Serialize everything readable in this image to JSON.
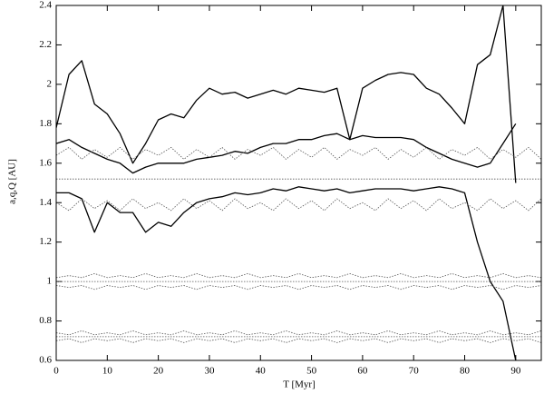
{
  "chart_data": {
    "type": "line",
    "x_label": "T [Myr]",
    "y_label": "a,q,Q [AU]",
    "xlim": [
      0,
      95
    ],
    "xticks": [
      0,
      10,
      20,
      30,
      40,
      50,
      60,
      70,
      80,
      90
    ],
    "ylim": [
      0.6,
      2.4
    ],
    "yticks": [
      0.6,
      0.8,
      1,
      1.2,
      1.4,
      1.6,
      1.8,
      2,
      2.2,
      2.4
    ],
    "x": [
      0,
      2.5,
      5,
      7.5,
      10,
      12.5,
      15,
      17.5,
      20,
      22.5,
      25,
      27.5,
      30,
      32.5,
      35,
      37.5,
      40,
      42.5,
      45,
      47.5,
      50,
      52.5,
      55,
      57.5,
      60,
      62.5,
      65,
      67.5,
      70,
      72.5,
      75,
      77.5,
      80,
      82.5,
      85,
      87.5,
      90,
      92.5,
      95
    ],
    "series": [
      {
        "color": "#000000",
        "style": "solid",
        "values": [
          1.78,
          2.05,
          2.12,
          1.9,
          1.85,
          1.75,
          1.6,
          1.7,
          1.82,
          1.85,
          1.83,
          1.92,
          1.98,
          1.95,
          1.96,
          1.93,
          1.95,
          1.97,
          1.95,
          1.98,
          1.97,
          1.96,
          1.98,
          1.72,
          1.98,
          2.02,
          2.05,
          2.06,
          2.05,
          1.98,
          1.95,
          1.88,
          1.8,
          2.1,
          2.15,
          2.4,
          1.5,
          null,
          null
        ]
      },
      {
        "color": "#000000",
        "style": "solid",
        "values": [
          1.7,
          1.72,
          1.68,
          1.65,
          1.62,
          1.6,
          1.55,
          1.58,
          1.6,
          1.6,
          1.6,
          1.62,
          1.63,
          1.64,
          1.66,
          1.65,
          1.68,
          1.7,
          1.7,
          1.72,
          1.72,
          1.74,
          1.75,
          1.72,
          1.74,
          1.73,
          1.73,
          1.73,
          1.72,
          1.68,
          1.65,
          1.62,
          1.6,
          1.58,
          1.6,
          1.7,
          1.8,
          null,
          null
        ]
      },
      {
        "color": "#000000",
        "style": "solid",
        "values": [
          1.45,
          1.45,
          1.42,
          1.25,
          1.4,
          1.35,
          1.35,
          1.25,
          1.3,
          1.28,
          1.35,
          1.4,
          1.42,
          1.43,
          1.45,
          1.44,
          1.45,
          1.47,
          1.46,
          1.48,
          1.47,
          1.46,
          1.47,
          1.45,
          1.46,
          1.47,
          1.47,
          1.47,
          1.46,
          1.47,
          1.48,
          1.47,
          1.45,
          1.2,
          1.0,
          0.9,
          0.6,
          null,
          null
        ]
      },
      {
        "color": "#555555",
        "style": "dotted",
        "values": [
          1.64,
          1.68,
          1.62,
          1.67,
          1.63,
          1.68,
          1.62,
          1.67,
          1.64,
          1.68,
          1.62,
          1.67,
          1.63,
          1.68,
          1.62,
          1.67,
          1.64,
          1.68,
          1.62,
          1.67,
          1.63,
          1.68,
          1.62,
          1.67,
          1.64,
          1.68,
          1.62,
          1.67,
          1.63,
          1.68,
          1.62,
          1.67,
          1.64,
          1.68,
          1.62,
          1.67,
          1.63,
          1.68,
          1.62
        ]
      },
      {
        "color": "#555555",
        "style": "dotted",
        "values": [
          1.52,
          1.52,
          1.52,
          1.52,
          1.52,
          1.52,
          1.52,
          1.52,
          1.52,
          1.52,
          1.52,
          1.52,
          1.52,
          1.52,
          1.52,
          1.52,
          1.52,
          1.52,
          1.52,
          1.52,
          1.52,
          1.52,
          1.52,
          1.52,
          1.52,
          1.52,
          1.52,
          1.52,
          1.52,
          1.52,
          1.52,
          1.52,
          1.52,
          1.52,
          1.52,
          1.52,
          1.52,
          1.52,
          1.52
        ]
      },
      {
        "color": "#555555",
        "style": "dotted",
        "values": [
          1.4,
          1.36,
          1.42,
          1.37,
          1.41,
          1.36,
          1.42,
          1.37,
          1.4,
          1.36,
          1.42,
          1.37,
          1.41,
          1.36,
          1.42,
          1.37,
          1.4,
          1.36,
          1.42,
          1.37,
          1.41,
          1.36,
          1.42,
          1.37,
          1.4,
          1.36,
          1.42,
          1.37,
          1.41,
          1.36,
          1.42,
          1.37,
          1.4,
          1.36,
          1.42,
          1.37,
          1.41,
          1.36,
          1.42
        ]
      },
      {
        "color": "#555555",
        "style": "dotted",
        "values": [
          1.02,
          1.03,
          1.02,
          1.04,
          1.02,
          1.03,
          1.02,
          1.04,
          1.02,
          1.03,
          1.02,
          1.04,
          1.02,
          1.03,
          1.02,
          1.04,
          1.02,
          1.03,
          1.02,
          1.04,
          1.02,
          1.03,
          1.02,
          1.04,
          1.02,
          1.03,
          1.02,
          1.04,
          1.02,
          1.03,
          1.02,
          1.04,
          1.02,
          1.03,
          1.02,
          1.04,
          1.02,
          1.03,
          1.02
        ]
      },
      {
        "color": "#555555",
        "style": "dotted",
        "values": [
          1,
          1,
          1,
          1,
          1,
          1,
          1,
          1,
          1,
          1,
          1,
          1,
          1,
          1,
          1,
          1,
          1,
          1,
          1,
          1,
          1,
          1,
          1,
          1,
          1,
          1,
          1,
          1,
          1,
          1,
          1,
          1,
          1,
          1,
          1,
          1,
          1,
          1,
          1
        ]
      },
      {
        "color": "#555555",
        "style": "dotted",
        "values": [
          0.98,
          0.97,
          0.98,
          0.96,
          0.98,
          0.97,
          0.98,
          0.96,
          0.98,
          0.97,
          0.98,
          0.96,
          0.98,
          0.97,
          0.98,
          0.96,
          0.98,
          0.97,
          0.98,
          0.96,
          0.98,
          0.97,
          0.98,
          0.96,
          0.98,
          0.97,
          0.98,
          0.96,
          0.98,
          0.97,
          0.98,
          0.96,
          0.98,
          0.97,
          0.98,
          0.96,
          0.98,
          0.97,
          0.98
        ]
      },
      {
        "color": "#555555",
        "style": "dotted",
        "values": [
          0.74,
          0.73,
          0.75,
          0.73,
          0.74,
          0.73,
          0.75,
          0.73,
          0.74,
          0.73,
          0.75,
          0.73,
          0.74,
          0.73,
          0.75,
          0.73,
          0.74,
          0.73,
          0.75,
          0.73,
          0.74,
          0.73,
          0.75,
          0.73,
          0.74,
          0.73,
          0.75,
          0.73,
          0.74,
          0.73,
          0.75,
          0.73,
          0.74,
          0.73,
          0.75,
          0.73,
          0.74,
          0.73,
          0.75
        ]
      },
      {
        "color": "#555555",
        "style": "dotted",
        "values": [
          0.72,
          0.72,
          0.72,
          0.72,
          0.72,
          0.72,
          0.72,
          0.72,
          0.72,
          0.72,
          0.72,
          0.72,
          0.72,
          0.72,
          0.72,
          0.72,
          0.72,
          0.72,
          0.72,
          0.72,
          0.72,
          0.72,
          0.72,
          0.72,
          0.72,
          0.72,
          0.72,
          0.72,
          0.72,
          0.72,
          0.72,
          0.72,
          0.72,
          0.72,
          0.72,
          0.72,
          0.72,
          0.72,
          0.72
        ]
      },
      {
        "color": "#555555",
        "style": "dotted",
        "values": [
          0.7,
          0.71,
          0.69,
          0.71,
          0.7,
          0.71,
          0.69,
          0.71,
          0.7,
          0.71,
          0.69,
          0.71,
          0.7,
          0.71,
          0.69,
          0.71,
          0.7,
          0.71,
          0.69,
          0.71,
          0.7,
          0.71,
          0.69,
          0.71,
          0.7,
          0.71,
          0.69,
          0.71,
          0.7,
          0.71,
          0.69,
          0.71,
          0.7,
          0.71,
          0.69,
          0.71,
          0.7,
          0.71,
          0.69
        ]
      }
    ]
  }
}
